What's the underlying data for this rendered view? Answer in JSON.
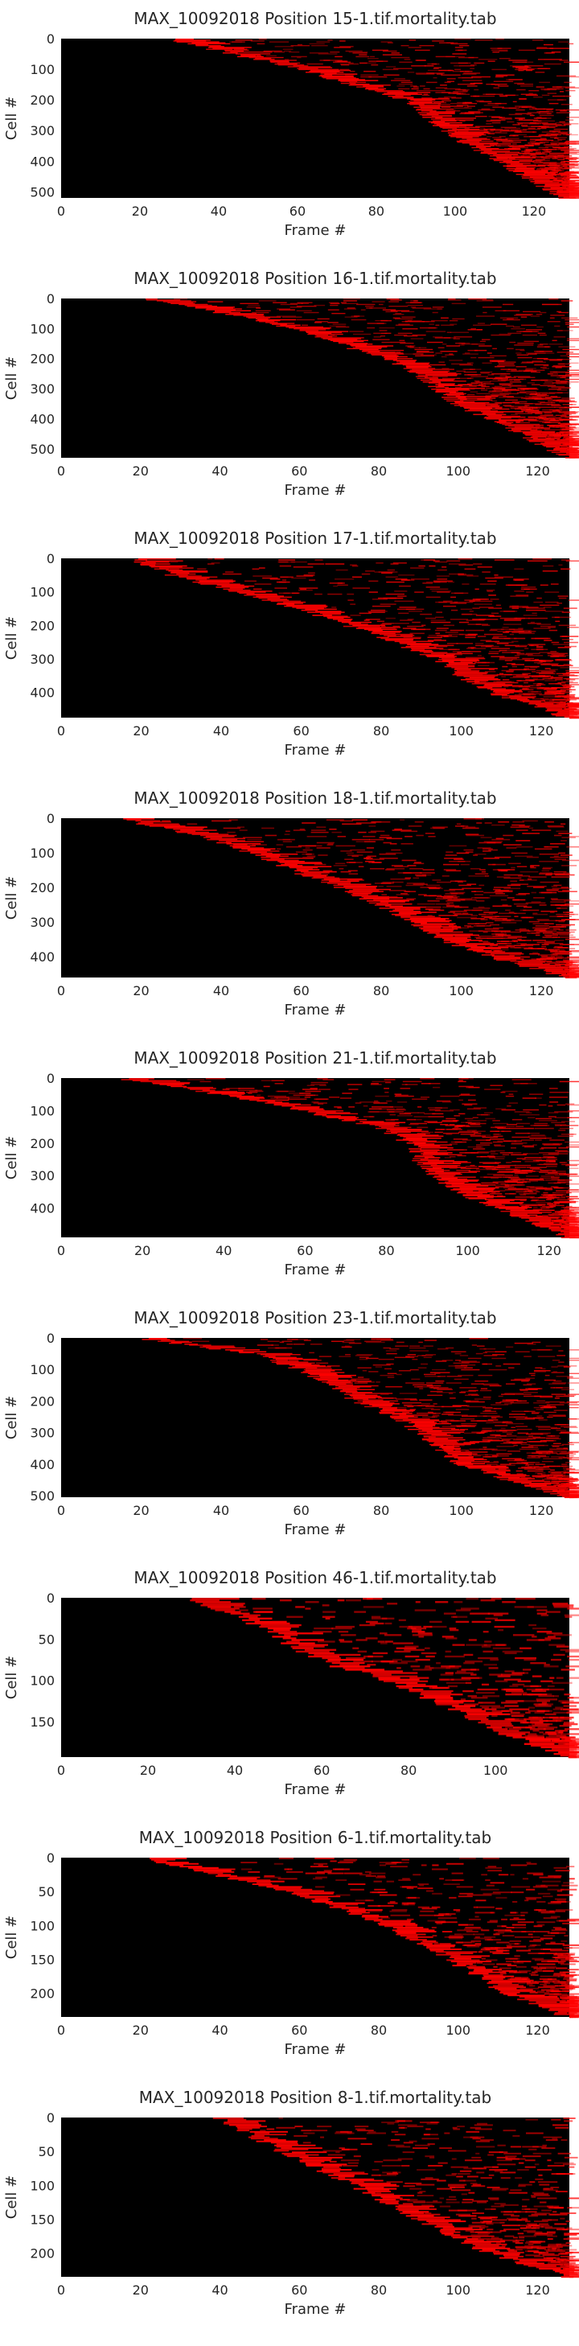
{
  "chart_data": [
    {
      "type": "heatmap",
      "title": "MAX_10092018 Position 15-1.tif.mortality.tab",
      "xlabel": "Frame #",
      "ylabel": "Cell #",
      "xlim": [
        0,
        129
      ],
      "ylim": [
        0,
        520
      ],
      "xticks": [
        0,
        20,
        40,
        60,
        80,
        100,
        120
      ],
      "yticks": [
        0,
        100,
        200,
        300,
        400,
        500
      ],
      "colormap": [
        "#000000",
        "#ff0000"
      ],
      "onset": {
        "y": [
          0,
          50,
          100,
          150,
          200,
          250,
          300,
          350,
          400,
          450,
          520
        ],
        "frame": [
          28,
          44,
          62,
          74,
          88,
          93,
          98,
          104,
          112,
          118,
          128
        ]
      }
    },
    {
      "type": "heatmap",
      "title": "MAX_10092018 Position 16-1.tif.mortality.tab",
      "xlabel": "Frame #",
      "ylabel": "Cell #",
      "xlim": [
        0,
        128
      ],
      "ylim": [
        0,
        530
      ],
      "xticks": [
        0,
        20,
        40,
        60,
        80,
        100,
        120
      ],
      "yticks": [
        0,
        100,
        200,
        300,
        400,
        500
      ],
      "colormap": [
        "#000000",
        "#ff0000"
      ],
      "onset": {
        "y": [
          0,
          50,
          100,
          150,
          200,
          250,
          300,
          350,
          400,
          450,
          530
        ],
        "frame": [
          20,
          42,
          58,
          70,
          82,
          90,
          95,
          100,
          108,
          116,
          128
        ]
      }
    },
    {
      "type": "heatmap",
      "title": "MAX_10092018 Position 17-1.tif.mortality.tab",
      "xlabel": "Frame #",
      "ylabel": "Cell #",
      "xlim": [
        0,
        127
      ],
      "ylim": [
        0,
        475
      ],
      "xticks": [
        0,
        20,
        40,
        60,
        80,
        100,
        120
      ],
      "yticks": [
        0,
        100,
        200,
        300,
        400
      ],
      "colormap": [
        "#000000",
        "#ff0000"
      ],
      "onset": {
        "y": [
          0,
          50,
          100,
          150,
          200,
          250,
          300,
          350,
          400,
          475
        ],
        "frame": [
          18,
          28,
          45,
          60,
          72,
          84,
          94,
          100,
          108,
          127
        ]
      }
    },
    {
      "type": "heatmap",
      "title": "MAX_10092018 Position 18-1.tif.mortality.tab",
      "xlabel": "Frame #",
      "ylabel": "Cell #",
      "xlim": [
        0,
        127
      ],
      "ylim": [
        0,
        460
      ],
      "xticks": [
        0,
        20,
        40,
        60,
        80,
        100,
        120
      ],
      "yticks": [
        0,
        100,
        200,
        300,
        400
      ],
      "colormap": [
        "#000000",
        "#ff0000"
      ],
      "onset": {
        "y": [
          0,
          50,
          100,
          150,
          200,
          250,
          300,
          350,
          400,
          460
        ],
        "frame": [
          14,
          35,
          48,
          58,
          70,
          80,
          88,
          95,
          108,
          127
        ]
      }
    },
    {
      "type": "heatmap",
      "title": "MAX_10092018 Position 21-1.tif.mortality.tab",
      "xlabel": "Frame #",
      "ylabel": "Cell #",
      "xlim": [
        0,
        125
      ],
      "ylim": [
        0,
        490
      ],
      "xticks": [
        0,
        20,
        40,
        60,
        80,
        100,
        120
      ],
      "yticks": [
        0,
        100,
        200,
        300,
        400
      ],
      "colormap": [
        "#000000",
        "#ff0000"
      ],
      "onset": {
        "y": [
          0,
          50,
          100,
          150,
          200,
          250,
          300,
          350,
          400,
          490
        ],
        "frame": [
          15,
          40,
          60,
          78,
          86,
          88,
          92,
          98,
          108,
          125
        ]
      }
    },
    {
      "type": "heatmap",
      "title": "MAX_10092018 Position 23-1.tif.mortality.tab",
      "xlabel": "Frame #",
      "ylabel": "Cell #",
      "xlim": [
        0,
        127
      ],
      "ylim": [
        0,
        505
      ],
      "xticks": [
        0,
        20,
        40,
        60,
        80,
        100,
        120
      ],
      "yticks": [
        0,
        100,
        200,
        300,
        400,
        500
      ],
      "colormap": [
        "#000000",
        "#ff0000"
      ],
      "onset": {
        "y": [
          0,
          50,
          100,
          150,
          200,
          250,
          300,
          350,
          400,
          450,
          505
        ],
        "frame": [
          20,
          48,
          60,
          68,
          74,
          84,
          90,
          94,
          100,
          112,
          127
        ]
      }
    },
    {
      "type": "heatmap",
      "title": "MAX_10092018 Position 46-1.tif.mortality.tab",
      "xlabel": "Frame #",
      "ylabel": "Cell #",
      "xlim": [
        0,
        117
      ],
      "ylim": [
        0,
        193
      ],
      "xticks": [
        0,
        20,
        40,
        60,
        80,
        100
      ],
      "yticks": [
        0,
        50,
        100,
        150
      ],
      "colormap": [
        "#000000",
        "#ff0000"
      ],
      "onset": {
        "y": [
          0,
          20,
          40,
          60,
          80,
          100,
          120,
          140,
          160,
          193
        ],
        "frame": [
          28,
          40,
          48,
          54,
          62,
          76,
          84,
          92,
          100,
          117
        ]
      }
    },
    {
      "type": "heatmap",
      "title": "MAX_10092018 Position 6-1.tif.mortality.tab",
      "xlabel": "Frame #",
      "ylabel": "Cell #",
      "xlim": [
        0,
        128
      ],
      "ylim": [
        0,
        235
      ],
      "xticks": [
        0,
        20,
        40,
        60,
        80,
        100,
        120
      ],
      "yticks": [
        0,
        50,
        100,
        150,
        200
      ],
      "colormap": [
        "#000000",
        "#ff0000"
      ],
      "onset": {
        "y": [
          0,
          50,
          100,
          150,
          200,
          235
        ],
        "frame": [
          20,
          58,
          82,
          98,
          112,
          128
        ]
      }
    },
    {
      "type": "heatmap",
      "title": "MAX_10092018 Position 8-1.tif.mortality.tab",
      "xlabel": "Frame #",
      "ylabel": "Cell #",
      "xlim": [
        0,
        128
      ],
      "ylim": [
        0,
        235
      ],
      "xticks": [
        0,
        20,
        40,
        60,
        80,
        100,
        120
      ],
      "yticks": [
        0,
        50,
        100,
        150,
        200
      ],
      "colormap": [
        "#000000",
        "#ff0000"
      ],
      "onset": {
        "y": [
          0,
          50,
          100,
          150,
          200,
          235
        ],
        "frame": [
          40,
          56,
          74,
          90,
          108,
          128
        ]
      }
    }
  ]
}
